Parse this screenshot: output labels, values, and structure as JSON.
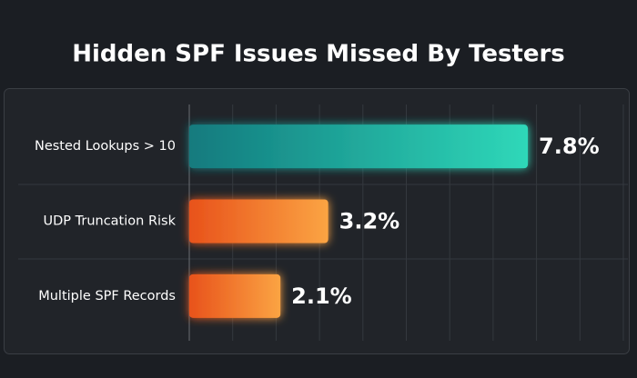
{
  "chart_data": {
    "type": "hbar",
    "title": "Hidden SPF Issues Missed By Testers",
    "categories": [
      "Nested Lookups > 10",
      "UDP Truncation Risk",
      "Multiple SPF Records"
    ],
    "values": [
      7.8,
      3.2,
      2.1
    ],
    "value_labels": [
      "7.8%",
      "3.2%",
      "2.1%"
    ],
    "colors": [
      [
        "#127a7e",
        "#2fd8b9"
      ],
      [
        "#e8521b",
        "#fba443"
      ],
      [
        "#e8521b",
        "#fba443"
      ]
    ],
    "xlim": [
      0,
      10
    ],
    "xticks": [
      0,
      1,
      2,
      3,
      4,
      5,
      6,
      7,
      8,
      9,
      10
    ],
    "grid": true
  }
}
